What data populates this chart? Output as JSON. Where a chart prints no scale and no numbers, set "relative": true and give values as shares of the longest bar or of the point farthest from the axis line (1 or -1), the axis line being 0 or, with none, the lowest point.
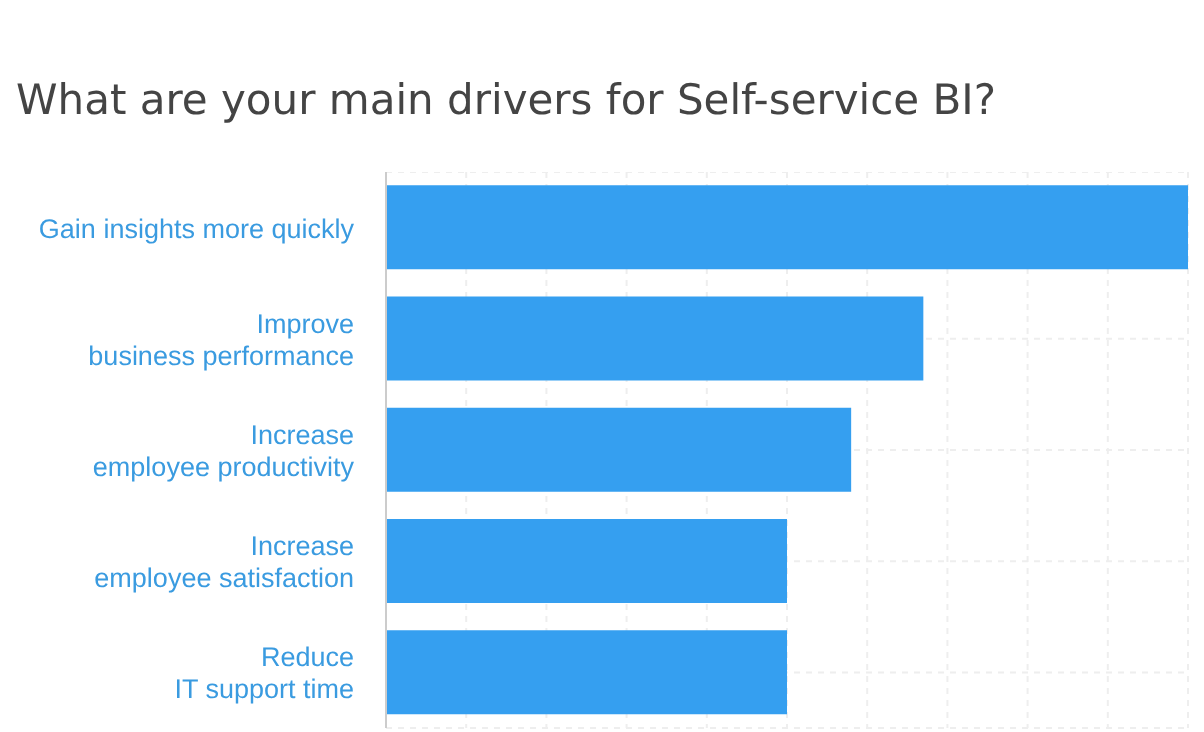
{
  "chart_data": {
    "type": "bar",
    "orientation": "horizontal",
    "relative": true,
    "title": "What are your main drivers for Self-service BI?",
    "categories": [
      "Gain insights more quickly",
      "Improve\nbusiness performance",
      "Increase\nemployee productivity",
      "Increase\nemployee satisfaction",
      "Reduce\nIT support time"
    ],
    "values": [
      1,
      0.67,
      0.58,
      0.5,
      0.5
    ],
    "color": "#359ff0",
    "grid": true
  }
}
